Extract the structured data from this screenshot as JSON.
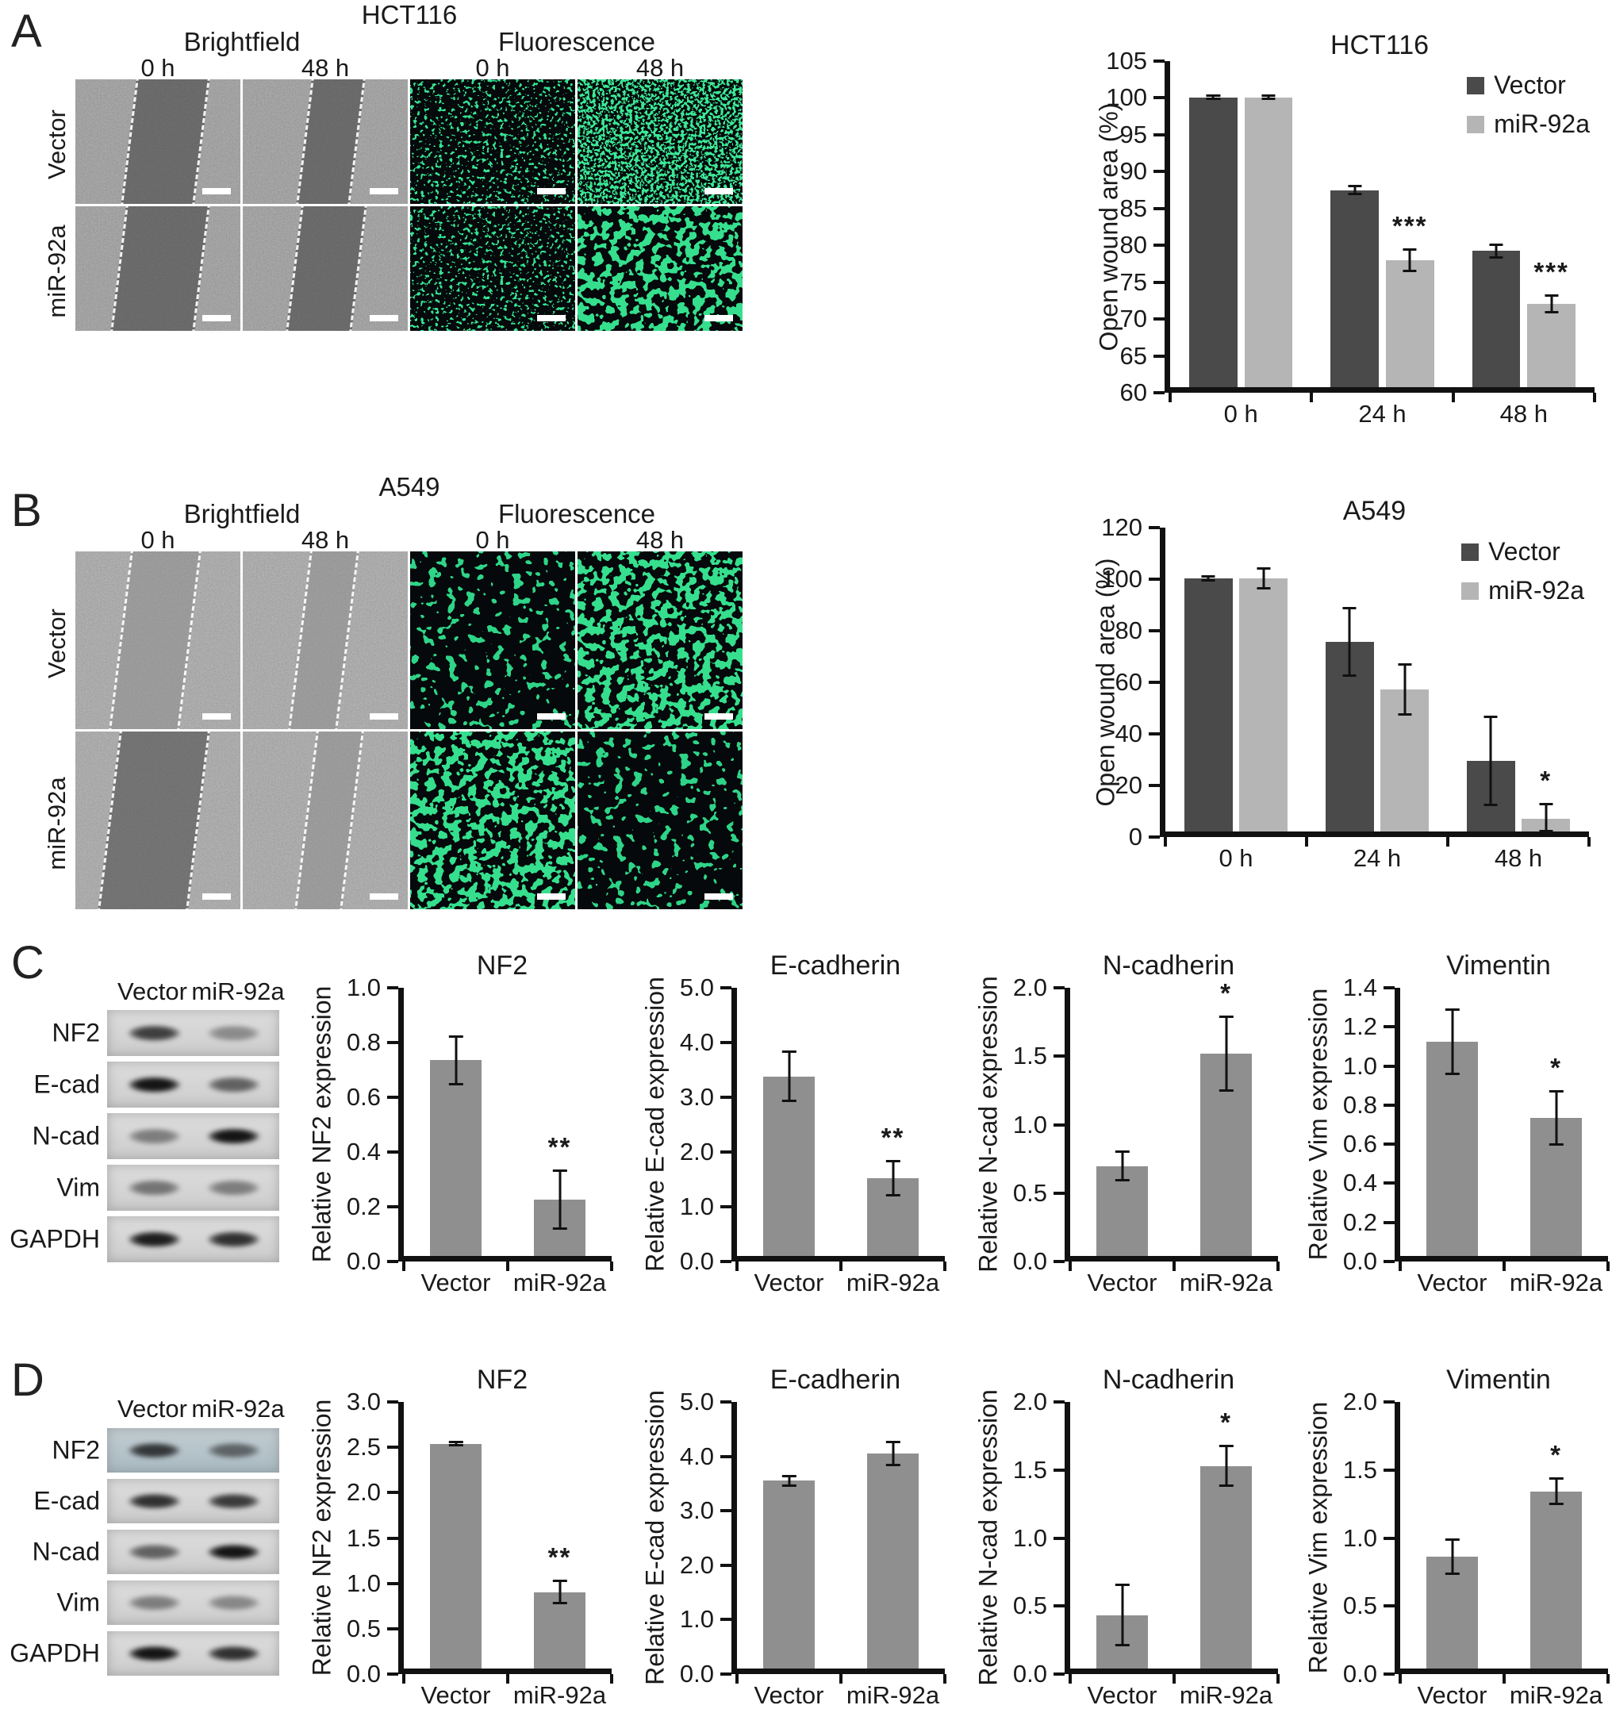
{
  "figure": {
    "panels": {
      "A": {
        "label": "A",
        "cell_line": "HCT116",
        "images": {
          "modalities": [
            "Brightfield",
            "Fluorescence"
          ],
          "timepoints": [
            "0 h",
            "48 h",
            "0 h",
            "48 h"
          ],
          "row_labels": [
            "Vector",
            "miR-92a"
          ]
        }
      },
      "B": {
        "label": "B",
        "cell_line": "A549",
        "images": {
          "modalities": [
            "Brightfield",
            "Fluorescence"
          ],
          "timepoints": [
            "0 h",
            "48 h",
            "0 h",
            "48 h"
          ],
          "row_labels": [
            "Vector",
            "miR-92a"
          ]
        }
      },
      "C": {
        "label": "C",
        "blot": {
          "col_headers": [
            "Vector",
            "miR-92a"
          ],
          "rows": [
            "NF2",
            "E-cad",
            "N-cad",
            "Vim",
            "GAPDH"
          ],
          "band_intensity": [
            [
              0.78,
              0.38
            ],
            [
              1.0,
              0.6
            ],
            [
              0.45,
              1.0
            ],
            [
              0.5,
              0.45
            ],
            [
              0.95,
              0.85
            ]
          ]
        }
      },
      "D": {
        "label": "D",
        "blot": {
          "col_headers": [
            "Vector",
            "miR-92a"
          ],
          "rows": [
            "NF2",
            "E-cad",
            "N-cad",
            "Vim",
            "GAPDH"
          ],
          "band_intensity": [
            [
              0.8,
              0.55
            ],
            [
              0.85,
              0.8
            ],
            [
              0.6,
              1.0
            ],
            [
              0.45,
              0.4
            ],
            [
              1.0,
              0.85
            ]
          ]
        }
      }
    }
  },
  "colors": {
    "vector_bar": "#4a4a4a",
    "mir92a_bar": "#b5b5b5",
    "single_bar": "#8f8f8f",
    "fluorescence_green": "#36e392",
    "axis": "#111111"
  },
  "chart_data": [
    {
      "id": "hct116-open-wound",
      "type": "bar",
      "panel": "A",
      "title": "HCT116",
      "ylabel": "Open wound area (%)",
      "categories": [
        "0 h",
        "24 h",
        "48 h"
      ],
      "ylim": [
        60,
        105
      ],
      "ytick_step": 5,
      "decimals": 0,
      "grid": false,
      "legend": true,
      "legend_position": "top-right",
      "series": [
        {
          "name": "Vector",
          "color": "#4a4a4a",
          "values": [
            100,
            87.2,
            78.8
          ],
          "errors": [
            0.3,
            0.6,
            0.9
          ]
        },
        {
          "name": "miR-92a",
          "color": "#b5b5b5",
          "values": [
            100,
            77.5,
            71.5
          ],
          "errors": [
            0.3,
            1.5,
            1.2
          ]
        }
      ],
      "significance": [
        {
          "series_index": 1,
          "category_index": 1,
          "label": "***"
        },
        {
          "series_index": 1,
          "category_index": 2,
          "label": "***"
        }
      ]
    },
    {
      "id": "a549-open-wound",
      "type": "bar",
      "panel": "B",
      "title": "A549",
      "ylabel": "Open wound area (%)",
      "categories": [
        "0 h",
        "24 h",
        "48 h"
      ],
      "ylim": [
        0,
        120
      ],
      "ytick_step": 20,
      "decimals": 0,
      "grid": false,
      "legend": true,
      "legend_position": "top-right",
      "series": [
        {
          "name": "Vector",
          "color": "#4a4a4a",
          "values": [
            100,
            75,
            28
          ],
          "errors": [
            1,
            13.5,
            17.5
          ]
        },
        {
          "name": "miR-92a",
          "color": "#b5b5b5",
          "values": [
            100,
            56,
            5
          ],
          "errors": [
            4,
            10,
            6
          ]
        }
      ],
      "significance": [
        {
          "series_index": 1,
          "category_index": 2,
          "label": "*"
        }
      ]
    },
    {
      "id": "hct116-nf2",
      "type": "bar",
      "panel": "C",
      "title": "NF2",
      "ylabel": "Relative NF2 expression",
      "categories": [
        "Vector",
        "miR-92a"
      ],
      "ylim": [
        0,
        1.0
      ],
      "ytick_step": 0.2,
      "decimals": 1,
      "grid": false,
      "legend": false,
      "series": [
        {
          "name": "expression",
          "color": "#8f8f8f",
          "values": [
            0.73,
            0.21
          ],
          "errors": [
            0.09,
            0.11
          ]
        }
      ],
      "significance": [
        {
          "series_index": 0,
          "category_index": 1,
          "label": "**"
        }
      ]
    },
    {
      "id": "hct116-ecadherin",
      "type": "bar",
      "panel": "C",
      "title": "E-cadherin",
      "ylabel": "Relative E-cad expression",
      "categories": [
        "Vector",
        "miR-92a"
      ],
      "ylim": [
        0,
        5.0
      ],
      "ytick_step": 1.0,
      "decimals": 1,
      "grid": false,
      "legend": false,
      "series": [
        {
          "name": "expression",
          "color": "#8f8f8f",
          "values": [
            3.35,
            1.45
          ],
          "errors": [
            0.47,
            0.33
          ]
        }
      ],
      "significance": [
        {
          "series_index": 0,
          "category_index": 1,
          "label": "**"
        }
      ]
    },
    {
      "id": "hct116-ncadherin",
      "type": "bar",
      "panel": "C",
      "title": "N-cadherin",
      "ylabel": "Relative N-cad expression",
      "categories": [
        "Vector",
        "miR-92a"
      ],
      "ylim": [
        0,
        2.0
      ],
      "ytick_step": 0.5,
      "decimals": 1,
      "grid": false,
      "legend": false,
      "series": [
        {
          "name": "expression",
          "color": "#8f8f8f",
          "values": [
            0.67,
            1.51
          ],
          "errors": [
            0.11,
            0.28
          ]
        }
      ],
      "significance": [
        {
          "series_index": 0,
          "category_index": 1,
          "label": "*"
        }
      ]
    },
    {
      "id": "hct116-vimentin",
      "type": "bar",
      "panel": "C",
      "title": "Vimentin",
      "ylabel": "Relative Vim expression",
      "categories": [
        "Vector",
        "miR-92a"
      ],
      "ylim": [
        0,
        1.4
      ],
      "ytick_step": 0.2,
      "decimals": 1,
      "grid": false,
      "legend": false,
      "series": [
        {
          "name": "expression",
          "color": "#8f8f8f",
          "values": [
            1.12,
            0.72
          ],
          "errors": [
            0.17,
            0.14
          ]
        }
      ],
      "significance": [
        {
          "series_index": 0,
          "category_index": 1,
          "label": "*"
        }
      ]
    },
    {
      "id": "a549-nf2",
      "type": "bar",
      "panel": "D",
      "title": "NF2",
      "ylabel": "Relative NF2 expression",
      "categories": [
        "Vector",
        "miR-92a"
      ],
      "ylim": [
        0,
        3.0
      ],
      "ytick_step": 0.5,
      "decimals": 1,
      "grid": false,
      "legend": false,
      "series": [
        {
          "name": "expression",
          "color": "#8f8f8f",
          "values": [
            2.53,
            0.86
          ],
          "errors": [
            0.02,
            0.13
          ]
        }
      ],
      "significance": [
        {
          "series_index": 0,
          "category_index": 1,
          "label": "**"
        }
      ]
    },
    {
      "id": "a549-ecadherin",
      "type": "bar",
      "panel": "D",
      "title": "E-cadherin",
      "ylabel": "Relative E-cad expression",
      "categories": [
        "Vector",
        "miR-92a"
      ],
      "ylim": [
        0,
        5.0
      ],
      "ytick_step": 1.0,
      "decimals": 1,
      "grid": false,
      "legend": false,
      "series": [
        {
          "name": "expression",
          "color": "#8f8f8f",
          "values": [
            3.52,
            4.03
          ],
          "errors": [
            0.1,
            0.22
          ]
        }
      ],
      "significance": []
    },
    {
      "id": "a549-ncadherin",
      "type": "bar",
      "panel": "D",
      "title": "N-cadherin",
      "ylabel": "Relative N-cad expression",
      "categories": [
        "Vector",
        "miR-92a"
      ],
      "ylim": [
        0,
        2.0
      ],
      "ytick_step": 0.5,
      "decimals": 1,
      "grid": false,
      "legend": false,
      "series": [
        {
          "name": "expression",
          "color": "#8f8f8f",
          "values": [
            0.4,
            1.52
          ],
          "errors": [
            0.23,
            0.15
          ]
        }
      ],
      "significance": [
        {
          "series_index": 0,
          "category_index": 1,
          "label": "*"
        }
      ]
    },
    {
      "id": "a549-vimentin",
      "type": "bar",
      "panel": "D",
      "title": "Vimentin",
      "ylabel": "Relative Vim expression",
      "categories": [
        "Vector",
        "miR-92a"
      ],
      "ylim": [
        0,
        2.0
      ],
      "ytick_step": 0.5,
      "decimals": 1,
      "grid": false,
      "legend": false,
      "series": [
        {
          "name": "expression",
          "color": "#8f8f8f",
          "values": [
            0.84,
            1.33
          ],
          "errors": [
            0.13,
            0.1
          ]
        }
      ],
      "significance": [
        {
          "series_index": 0,
          "category_index": 1,
          "label": "*"
        }
      ]
    }
  ]
}
